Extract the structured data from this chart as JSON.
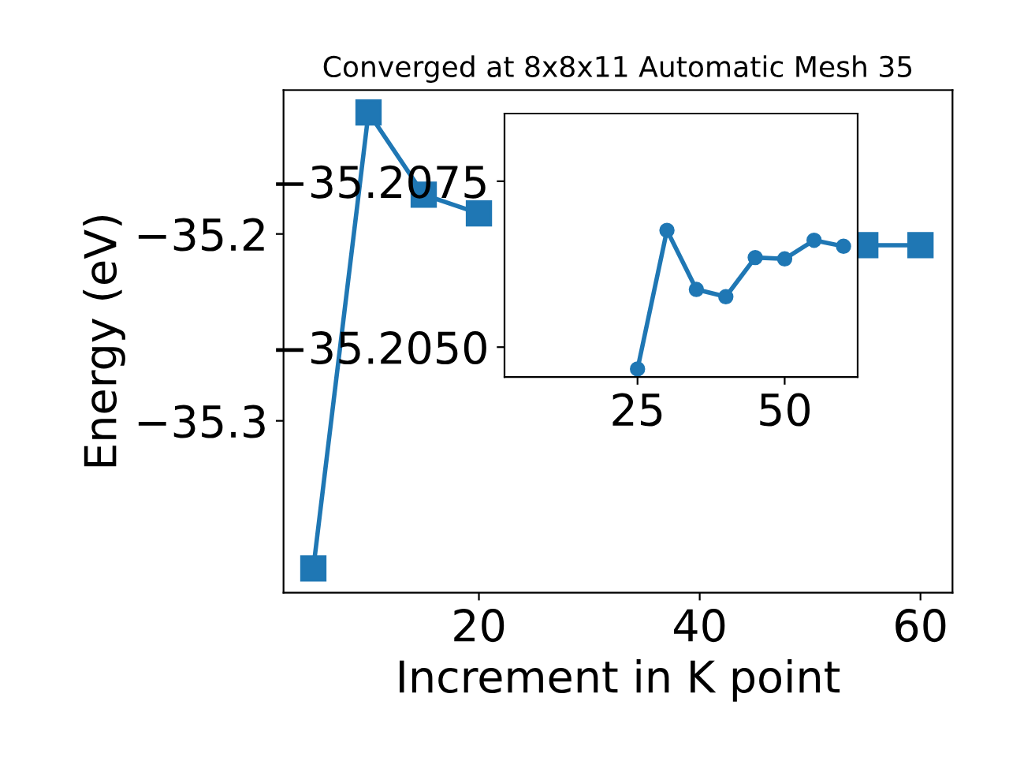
{
  "chart_data": [
    {
      "type": "line",
      "title": "Converged at 8x8x11 Automatic Mesh 35",
      "xlabel": "Increment in K point",
      "ylabel": "Energy (eV)",
      "x": [
        5,
        10,
        15,
        20,
        25,
        30,
        35,
        40,
        45,
        50,
        55,
        60
      ],
      "series": [
        {
          "color": "#1f77b4",
          "values": [
            -35.379,
            -35.135,
            -35.179,
            -35.189,
            null,
            null,
            null,
            null,
            null,
            null,
            -35.206,
            -35.206
          ]
        }
      ],
      "marker": "square",
      "line_style": "solid",
      "grid": false,
      "legend": false,
      "xlim": [
        2.3,
        62.9
      ],
      "xticks": [
        20,
        40,
        60
      ],
      "ylim": [
        -35.392,
        -35.123
      ],
      "yticks": [
        {
          "value": -35.2,
          "label": "−35.2"
        },
        {
          "value": -35.3,
          "label": "−35.3"
        }
      ]
    },
    {
      "type": "line",
      "x": [
        25,
        30,
        35,
        40,
        45,
        50,
        55,
        60
      ],
      "series": [
        {
          "color": "#1f77b4",
          "values": [
            -35.20467,
            -35.20676,
            -35.20587,
            -35.20576,
            -35.20635,
            -35.20633,
            -35.20661,
            -35.20652
          ]
        }
      ],
      "marker": "circle",
      "line_style": "solid",
      "grid": false,
      "legend": false,
      "xlim": [
        2.4,
        62.4
      ],
      "xticks": [
        25,
        50
      ],
      "ylim": [
        -35.20455,
        -35.20852
      ],
      "yticks": [
        {
          "value": -35.2075,
          "label": "−35.2075"
        },
        {
          "value": -35.205,
          "label": "−35.2050"
        }
      ]
    }
  ]
}
